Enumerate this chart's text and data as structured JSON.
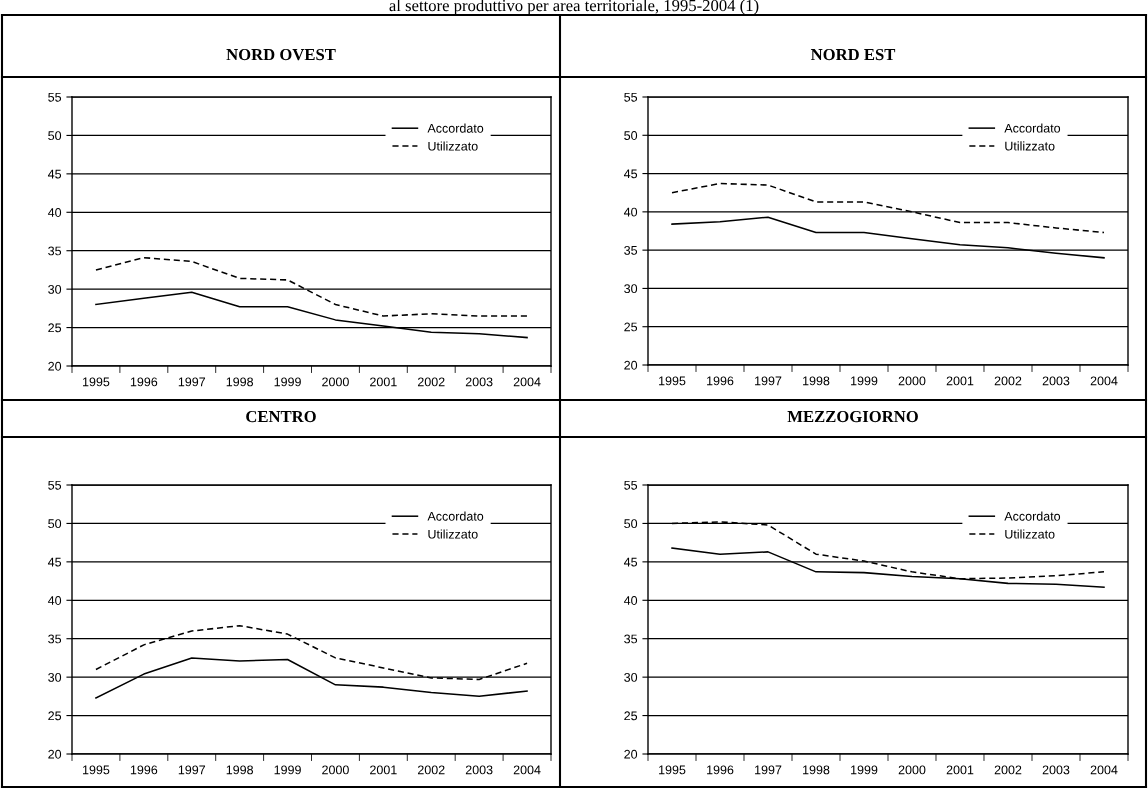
{
  "chart_data": [
    {
      "type": "line",
      "title": "NORD OVEST",
      "annotations": [
        "al settore produttivo per area territoriale, 1995-2004 (1)"
      ],
      "categories": [
        "1995",
        "1996",
        "1997",
        "1998",
        "1999",
        "2000",
        "2001",
        "2002",
        "2003",
        "2004"
      ],
      "ylim": [
        20,
        55
      ],
      "yticks": [
        20,
        25,
        30,
        35,
        40,
        45,
        50,
        55
      ],
      "grid": "y",
      "legend": "top right",
      "series": [
        {
          "name": "Accordato",
          "color": "#000000",
          "line_style": "solid",
          "values": [
            28.0,
            28.8,
            29.6,
            27.7,
            27.7,
            26.0,
            25.2,
            24.4,
            24.2,
            23.7
          ]
        },
        {
          "name": "Utilizzato",
          "color": "#000000",
          "line_style": "dashed",
          "values": [
            32.5,
            34.1,
            33.6,
            31.4,
            31.2,
            28.0,
            26.5,
            26.8,
            26.5,
            26.5
          ]
        }
      ]
    },
    {
      "type": "line",
      "title": "NORD EST",
      "categories": [
        "1995",
        "1996",
        "1997",
        "1998",
        "1999",
        "2000",
        "2001",
        "2002",
        "2003",
        "2004"
      ],
      "ylim": [
        20,
        55
      ],
      "yticks": [
        20,
        25,
        30,
        35,
        40,
        45,
        50,
        55
      ],
      "grid": "y",
      "legend": "top right",
      "series": [
        {
          "name": "Accordato",
          "color": "#000000",
          "line_style": "solid",
          "values": [
            38.4,
            38.7,
            39.3,
            37.3,
            37.3,
            36.5,
            35.7,
            35.3,
            34.6,
            34.0
          ]
        },
        {
          "name": "Utilizzato",
          "color": "#000000",
          "line_style": "dashed",
          "values": [
            42.5,
            43.7,
            43.5,
            41.3,
            41.3,
            40.0,
            38.6,
            38.6,
            37.9,
            37.3
          ]
        }
      ]
    },
    {
      "type": "line",
      "title": "CENTRO",
      "categories": [
        "1995",
        "1996",
        "1997",
        "1998",
        "1999",
        "2000",
        "2001",
        "2002",
        "2003",
        "2004"
      ],
      "ylim": [
        20,
        55
      ],
      "yticks": [
        20,
        25,
        30,
        35,
        40,
        45,
        50,
        55
      ],
      "grid": "y",
      "legend": "top right",
      "series": [
        {
          "name": "Accordato",
          "color": "#000000",
          "line_style": "solid",
          "values": [
            27.3,
            30.4,
            32.5,
            32.1,
            32.3,
            29.0,
            28.7,
            28.0,
            27.5,
            28.2
          ]
        },
        {
          "name": "Utilizzato",
          "color": "#000000",
          "line_style": "dashed",
          "values": [
            31.0,
            34.2,
            36.0,
            36.7,
            35.6,
            32.5,
            31.2,
            29.9,
            29.7,
            31.8
          ]
        }
      ]
    },
    {
      "type": "line",
      "title": "MEZZOGIORNO",
      "categories": [
        "1995",
        "1996",
        "1997",
        "1998",
        "1999",
        "2000",
        "2001",
        "2002",
        "2003",
        "2004"
      ],
      "ylim": [
        20,
        55
      ],
      "yticks": [
        20,
        25,
        30,
        35,
        40,
        45,
        50,
        55
      ],
      "grid": "y",
      "legend": "top right",
      "series": [
        {
          "name": "Accordato",
          "color": "#000000",
          "line_style": "solid",
          "values": [
            46.8,
            46.0,
            46.3,
            43.7,
            43.6,
            43.1,
            42.8,
            42.2,
            42.1,
            41.7
          ]
        },
        {
          "name": "Utilizzato",
          "color": "#000000",
          "line_style": "dashed",
          "values": [
            50.0,
            50.2,
            49.8,
            46.0,
            45.1,
            43.7,
            42.8,
            42.9,
            43.2,
            43.7
          ]
        }
      ]
    }
  ]
}
